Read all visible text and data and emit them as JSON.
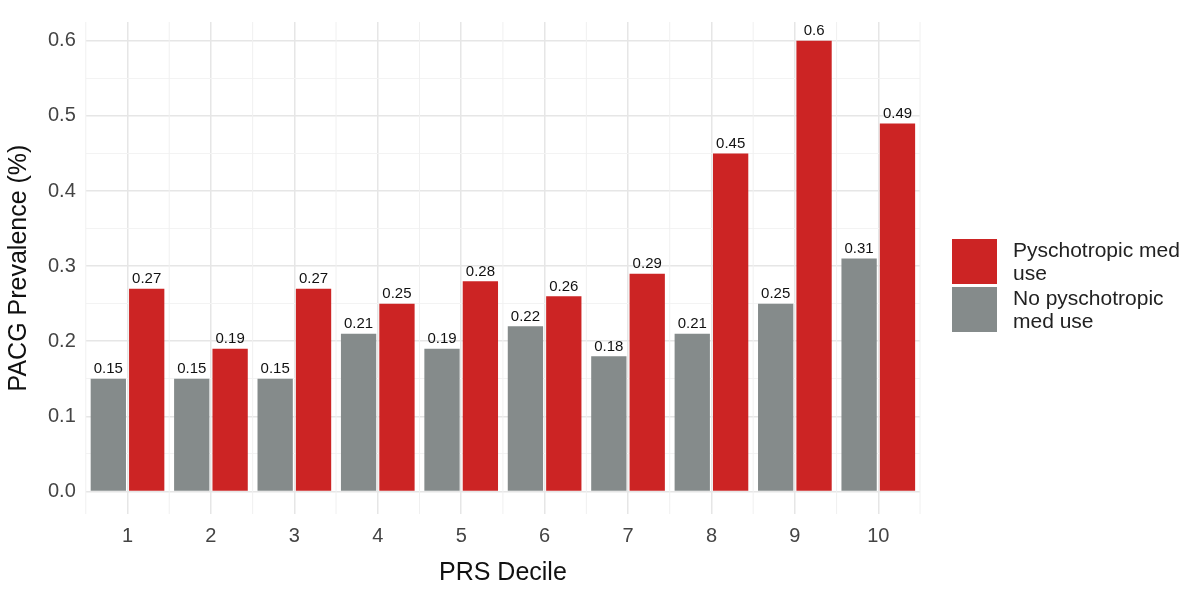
{
  "chart_data": {
    "type": "bar",
    "xlabel": "PRS Decile",
    "ylabel": "PACG Prevalence (%)",
    "categories": [
      "1",
      "2",
      "3",
      "4",
      "5",
      "6",
      "7",
      "8",
      "9",
      "10"
    ],
    "series": [
      {
        "name": "No pyschotropic med use",
        "color": "#858b8b",
        "values": [
          0.15,
          0.15,
          0.15,
          0.21,
          0.19,
          0.22,
          0.18,
          0.21,
          0.25,
          0.31
        ]
      },
      {
        "name": "Pyschotropic med use",
        "color": "#cc2424",
        "values": [
          0.27,
          0.19,
          0.27,
          0.25,
          0.28,
          0.26,
          0.29,
          0.45,
          0.6,
          0.49
        ]
      }
    ],
    "ylim": [
      -0.03,
      0.625
    ],
    "yticks": [
      {
        "value": 0,
        "label": "0.0"
      },
      {
        "value": 0.05,
        "label": null
      },
      0.1,
      {
        "value": 0.15,
        "label": null
      },
      0.2,
      {
        "value": 0.25,
        "label": null
      },
      0.3,
      {
        "value": 0.35,
        "label": null
      },
      0.4,
      {
        "value": 0.45,
        "label": null
      },
      0.5,
      {
        "value": 0.55,
        "label": null
      },
      0.6
    ],
    "grid": true,
    "legend": "right",
    "data_labels": true
  }
}
